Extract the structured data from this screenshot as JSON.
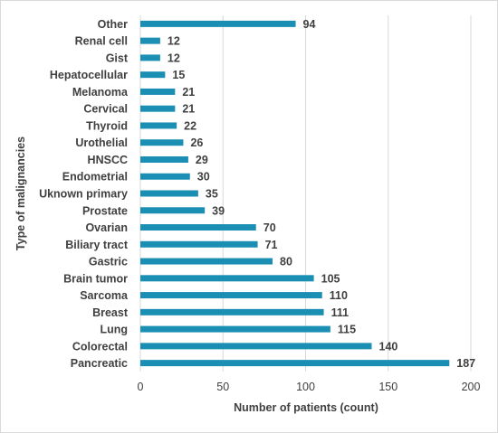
{
  "chart_data": {
    "type": "bar",
    "orientation": "horizontal",
    "title": "",
    "xlabel": "Number of patients (count)",
    "ylabel": "Type of malignancies",
    "xlim": [
      0,
      200
    ],
    "xticks": [
      0,
      50,
      100,
      150,
      200
    ],
    "grid": "vertical",
    "bar_color": "#1b8fb3",
    "categories": [
      "Other",
      "Renal cell",
      "Gist",
      "Hepatocellular",
      "Melanoma",
      "Cervical",
      "Thyroid",
      "Urothelial",
      "HNSCC",
      "Endometrial",
      "Uknown primary",
      "Prostate",
      "Ovarian",
      "Biliary tract",
      "Gastric",
      "Brain tumor",
      "Sarcoma",
      "Breast",
      "Lung",
      "Colorectal",
      "Pancreatic"
    ],
    "values": [
      94,
      12,
      12,
      15,
      21,
      21,
      22,
      26,
      29,
      30,
      35,
      39,
      70,
      71,
      80,
      105,
      110,
      111,
      115,
      140,
      187
    ]
  }
}
